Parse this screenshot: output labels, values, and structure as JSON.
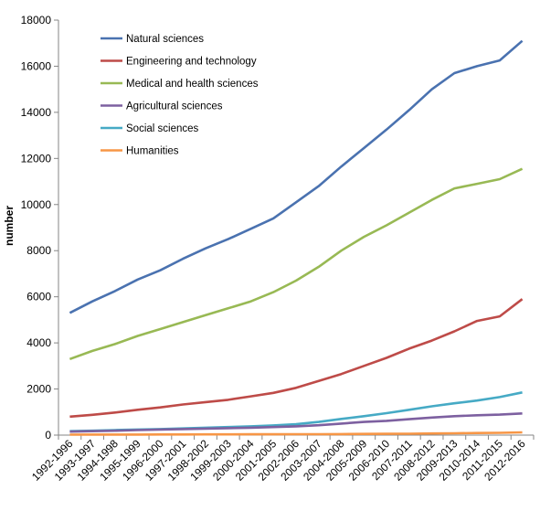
{
  "chart_data": {
    "type": "line",
    "title": "",
    "xlabel": "",
    "ylabel": "number",
    "ylim": [
      0,
      18000
    ],
    "yticks": [
      "0",
      "2000",
      "4000",
      "6000",
      "8000",
      "10000",
      "12000",
      "14000",
      "16000",
      "18000"
    ],
    "grid": false,
    "legend_position": "top-left",
    "categories": [
      "1992-1996",
      "1993-1997",
      "1994-1998",
      "1995-1999",
      "1996-2000",
      "1997-2001",
      "1998-2002",
      "1999-2003",
      "2000-2004",
      "2001-2005",
      "2002-2006",
      "2003-2007",
      "2004-2008",
      "2005-2009",
      "2006-2010",
      "2007-2011",
      "2008-2012",
      "2009-2013",
      "2010-2014",
      "2011-2015",
      "2012-2016"
    ],
    "series": [
      {
        "name": "Natural sciences",
        "color": "#4a72b0",
        "values": [
          5300,
          5800,
          6250,
          6750,
          7150,
          7650,
          8100,
          8500,
          8950,
          9400,
          10100,
          10800,
          11650,
          12450,
          13250,
          14100,
          15000,
          15700,
          16000,
          16250,
          17100
        ]
      },
      {
        "name": "Engineering and technology",
        "color": "#be4b48",
        "values": [
          800,
          880,
          980,
          1100,
          1200,
          1330,
          1430,
          1530,
          1680,
          1830,
          2050,
          2350,
          2650,
          3000,
          3350,
          3750,
          4100,
          4500,
          4950,
          5150,
          5900
        ]
      },
      {
        "name": "Medical and health sciences",
        "color": "#98b954",
        "values": [
          3300,
          3650,
          3950,
          4300,
          4600,
          4900,
          5200,
          5500,
          5800,
          6200,
          6700,
          7300,
          8000,
          8600,
          9100,
          9650,
          10200,
          10700,
          10900,
          11100,
          11550
        ]
      },
      {
        "name": "Agricultural sciences",
        "color": "#7d60a0",
        "values": [
          150,
          170,
          190,
          220,
          240,
          260,
          280,
          300,
          320,
          350,
          380,
          430,
          500,
          570,
          620,
          690,
          760,
          820,
          860,
          890,
          940
        ]
      },
      {
        "name": "Social sciences",
        "color": "#46aac5",
        "values": [
          170,
          190,
          220,
          240,
          260,
          290,
          320,
          350,
          380,
          420,
          470,
          570,
          700,
          820,
          950,
          1100,
          1250,
          1380,
          1500,
          1650,
          1850
        ]
      },
      {
        "name": "Humanities",
        "color": "#f79646",
        "values": [
          20,
          22,
          24,
          25,
          27,
          28,
          30,
          32,
          34,
          36,
          38,
          40,
          45,
          50,
          55,
          60,
          70,
          80,
          90,
          100,
          120
        ]
      }
    ]
  }
}
